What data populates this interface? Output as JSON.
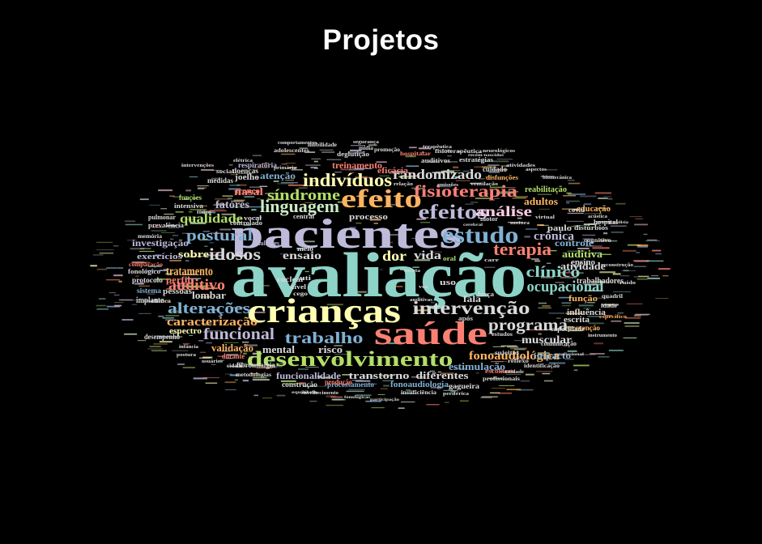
{
  "title": "Projetos",
  "palette": [
    "#8dd3c7",
    "#ffffb3",
    "#bebada",
    "#fb8072",
    "#80b1d3",
    "#fdb462",
    "#b3de69",
    "#fccde5",
    "#d9d9d9",
    "#ccebc5"
  ],
  "words": [
    {
      "text": "avaliação",
      "color": "#8dd3c7"
    },
    {
      "text": "pacientes",
      "color": "#bebada"
    },
    {
      "text": "crianças",
      "color": "#ffffb3"
    },
    {
      "text": "saúde",
      "color": "#fb8072"
    },
    {
      "text": "estudo",
      "color": "#80b1d3"
    },
    {
      "text": "desenvolvimento",
      "color": "#b3de69"
    },
    {
      "text": "efeito",
      "color": "#fdb462"
    },
    {
      "text": "intervenção",
      "color": "#d9d9d9"
    },
    {
      "text": "efeitos",
      "color": "#bebada"
    },
    {
      "text": "indivíduos",
      "color": "#ffffb3"
    },
    {
      "text": "linguagem",
      "color": "#ccebc5"
    },
    {
      "text": "fisioterapia",
      "color": "#fb8072"
    },
    {
      "text": "síndrome",
      "color": "#b3de69"
    },
    {
      "text": "terapia",
      "color": "#fb8072"
    },
    {
      "text": "postural",
      "color": "#80b1d3"
    },
    {
      "text": "programa",
      "color": "#d9d9d9"
    },
    {
      "text": "trabalho",
      "color": "#80b1d3"
    },
    {
      "text": "funcional",
      "color": "#bebada"
    },
    {
      "text": "alterações",
      "color": "#80b1d3"
    },
    {
      "text": "análise",
      "color": "#fccde5"
    },
    {
      "text": "randomizado",
      "color": "#d9d9d9"
    },
    {
      "text": "idosos",
      "color": "#d9d9d9"
    },
    {
      "text": "clínico",
      "color": "#8dd3c7"
    },
    {
      "text": "ocupacional",
      "color": "#8dd3c7"
    },
    {
      "text": "auditivo",
      "color": "#fb8072"
    },
    {
      "text": "qualidade",
      "color": "#b3de69"
    },
    {
      "text": "fonoaudiológica",
      "color": "#fdb462"
    },
    {
      "text": "caracterização",
      "color": "#fdb462"
    },
    {
      "text": "tratamento",
      "color": "#fdb462"
    },
    {
      "text": "dor",
      "color": "#ffffb3"
    },
    {
      "text": "vida",
      "color": "#d9d9d9"
    },
    {
      "text": "crônica",
      "color": "#bebada"
    },
    {
      "text": "transtorno",
      "color": "#d9d9d9"
    },
    {
      "text": "funcionalidade",
      "color": "#bebada"
    },
    {
      "text": "estimulação",
      "color": "#80b1d3"
    },
    {
      "text": "muscular",
      "color": "#d9d9d9"
    },
    {
      "text": "atividade",
      "color": "#d9d9d9"
    },
    {
      "text": "ensaio",
      "color": "#d9d9d9"
    },
    {
      "text": "fatores",
      "color": "#bebada"
    },
    {
      "text": "nasal",
      "color": "#fb8072"
    },
    {
      "text": "sobre",
      "color": "#ffffb3"
    },
    {
      "text": "auditiva",
      "color": "#b3de69"
    },
    {
      "text": "controle",
      "color": "#80b1d3"
    },
    {
      "text": "adultos",
      "color": "#fdb462"
    },
    {
      "text": "treinamento",
      "color": "#fb8072"
    },
    {
      "text": "processo",
      "color": "#d9d9d9"
    },
    {
      "text": "atenção",
      "color": "#80b1d3"
    },
    {
      "text": "investigação",
      "color": "#bebada"
    },
    {
      "text": "exercícios",
      "color": "#bebada"
    },
    {
      "text": "perfil",
      "color": "#fb8072"
    },
    {
      "text": "lombar",
      "color": "#d9d9d9"
    },
    {
      "text": "validação",
      "color": "#fdb462"
    },
    {
      "text": "mental",
      "color": "#d9d9d9"
    },
    {
      "text": "risco",
      "color": "#d9d9d9"
    },
    {
      "text": "diferentes",
      "color": "#d9d9d9"
    },
    {
      "text": "fonoaudiologia",
      "color": "#80b1d3"
    },
    {
      "text": "espectro",
      "color": "#ffffb3"
    },
    {
      "text": "influência",
      "color": "#d9d9d9"
    },
    {
      "text": "impacto",
      "color": "#80b1d3"
    },
    {
      "text": "fala",
      "color": "#d9d9d9"
    },
    {
      "text": "uso",
      "color": "#d9d9d9"
    },
    {
      "text": "reabilitação",
      "color": "#b3de69"
    },
    {
      "text": "paulo",
      "color": "#d9d9d9"
    },
    {
      "text": "educação",
      "color": "#fdb462"
    },
    {
      "text": "função",
      "color": "#fdb462"
    },
    {
      "text": "trabalhadores",
      "color": "#d9d9d9"
    },
    {
      "text": "escrita",
      "color": "#d9d9d9"
    },
    {
      "text": "prevenção",
      "color": "#fdb462"
    },
    {
      "text": "ensino",
      "color": "#d9d9d9"
    },
    {
      "text": "pessoas",
      "color": "#d9d9d9"
    },
    {
      "text": "implante",
      "color": "#d9d9d9"
    },
    {
      "text": "coclear",
      "color": "#d9d9d9"
    },
    {
      "text": "eficácia",
      "color": "#fb8072"
    },
    {
      "text": "joelho",
      "color": "#d9d9d9"
    },
    {
      "text": "tronco",
      "color": "#fb8072"
    },
    {
      "text": "doenças",
      "color": "#d9d9d9"
    },
    {
      "text": "construção",
      "color": "#d9d9d9"
    },
    {
      "text": "protocolo",
      "color": "#d9d9d9"
    },
    {
      "text": "sistema",
      "color": "#80b1d3"
    },
    {
      "text": "respiratória",
      "color": "#bebada"
    },
    {
      "text": "desempenho",
      "color": "#d9d9d9"
    },
    {
      "text": "intensiva",
      "color": "#d9d9d9"
    },
    {
      "text": "medidas",
      "color": "#d9d9d9"
    },
    {
      "text": "funções",
      "color": "#b3de69"
    },
    {
      "text": "cuidado",
      "color": "#d9d9d9"
    },
    {
      "text": "processamento",
      "color": "#80b1d3"
    },
    {
      "text": "deglutição",
      "color": "#d9d9d9"
    },
    {
      "text": "auditivos",
      "color": "#d9d9d9"
    },
    {
      "text": "durante",
      "color": "#fb8072"
    },
    {
      "text": "fibromialgia",
      "color": "#d9d9d9"
    },
    {
      "text": "comunicação",
      "color": "#d9d9d9"
    },
    {
      "text": "covid",
      "color": "#d9d9d9"
    },
    {
      "text": "pulmonar",
      "color": "#d9d9d9"
    },
    {
      "text": "hospital",
      "color": "#d9d9d9"
    },
    {
      "text": "fonológico",
      "color": "#d9d9d9"
    },
    {
      "text": "melo",
      "color": "#d9d9d9"
    },
    {
      "text": "oral",
      "color": "#b3de69"
    },
    {
      "text": "força",
      "color": "#d9d9d9"
    },
    {
      "text": "capacidade",
      "color": "#d9d9d9"
    },
    {
      "text": "prevalência",
      "color": "#d9d9d9"
    },
    {
      "text": "distúrbios",
      "color": "#d9d9d9"
    },
    {
      "text": "gagueira",
      "color": "#d9d9d9"
    },
    {
      "text": "produção",
      "color": "#fb8072"
    },
    {
      "text": "após",
      "color": "#d9d9d9"
    },
    {
      "text": "nível",
      "color": "#d9d9d9"
    },
    {
      "text": "vocal",
      "color": "#d9d9d9"
    },
    {
      "text": "mulheres",
      "color": "#bebada"
    },
    {
      "text": "controlado",
      "color": "#d9d9d9"
    },
    {
      "text": "motor",
      "color": "#d9d9d9"
    },
    {
      "text": "central",
      "color": "#d9d9d9"
    },
    {
      "text": "escolares",
      "color": "#fb8072"
    },
    {
      "text": "disfunções",
      "color": "#fdb462"
    },
    {
      "text": "estratégias",
      "color": "#d9d9d9"
    },
    {
      "text": "cognitivo",
      "color": "#d9d9d9"
    },
    {
      "text": "idade",
      "color": "#d9d9d9"
    },
    {
      "text": "cego",
      "color": "#d9d9d9"
    },
    {
      "text": "uti",
      "color": "#d9d9d9"
    },
    {
      "text": "social",
      "color": "#d9d9d9"
    },
    {
      "text": "memória",
      "color": "#d9d9d9"
    },
    {
      "text": "comparação",
      "color": "#fb8072"
    },
    {
      "text": "clínica",
      "color": "#d9d9d9"
    },
    {
      "text": "sujeitos",
      "color": "#d9d9d9"
    },
    {
      "text": "reflexo",
      "color": "#d9d9d9"
    },
    {
      "text": "estudos",
      "color": "#d9d9d9"
    },
    {
      "text": "fisioterapêutica",
      "color": "#d9d9d9"
    },
    {
      "text": "promoção",
      "color": "#d9d9d9"
    },
    {
      "text": "hospitalar",
      "color": "#fb8072"
    },
    {
      "text": "adolescentes",
      "color": "#d9d9d9"
    },
    {
      "text": "mobilidade",
      "color": "#d9d9d9"
    },
    {
      "text": "mídia",
      "color": "#d9d9d9"
    },
    {
      "text": "quadril",
      "color": "#d9d9d9"
    },
    {
      "text": "ruído",
      "color": "#d9d9d9"
    },
    {
      "text": "identificação",
      "color": "#d9d9d9"
    },
    {
      "text": "profissionais",
      "color": "#d9d9d9"
    },
    {
      "text": "insuficiência",
      "color": "#d9d9d9"
    },
    {
      "text": "metodologias",
      "color": "#d9d9d9"
    },
    {
      "text": "comportamentos",
      "color": "#d9d9d9"
    },
    {
      "text": "unidade",
      "color": "#d9d9d9"
    },
    {
      "text": "atividades",
      "color": "#d9d9d9"
    },
    {
      "text": "instrumento",
      "color": "#d9d9d9"
    },
    {
      "text": "cidade",
      "color": "#d9d9d9"
    },
    {
      "text": "terapêutica",
      "color": "#d9d9d9"
    },
    {
      "text": "segurança",
      "color": "#d9d9d9"
    },
    {
      "text": "relação",
      "color": "#d9d9d9"
    },
    {
      "text": "emissões",
      "color": "#d9d9d9"
    },
    {
      "text": "voz",
      "color": "#d9d9d9"
    },
    {
      "text": "escuta",
      "color": "#d9d9d9"
    },
    {
      "text": "ventilação",
      "color": "#d9d9d9"
    },
    {
      "text": "neurológicos",
      "color": "#d9d9d9"
    },
    {
      "text": "elétrica",
      "color": "#d9d9d9"
    },
    {
      "text": "postura",
      "color": "#d9d9d9"
    },
    {
      "text": "infância",
      "color": "#d9d9d9"
    },
    {
      "text": "usuários",
      "color": "#d9d9d9"
    },
    {
      "text": "equilíbrio",
      "color": "#d9d9d9"
    },
    {
      "text": "envelhecimento",
      "color": "#d9d9d9"
    },
    {
      "text": "periférica",
      "color": "#d9d9d9"
    },
    {
      "text": "auditivas",
      "color": "#d9d9d9"
    },
    {
      "text": "específico",
      "color": "#fdb462"
    },
    {
      "text": "fonológicas",
      "color": "#d9d9d9"
    },
    {
      "text": "participação",
      "color": "#d9d9d9"
    },
    {
      "text": "recém-nascidos",
      "color": "#d9d9d9"
    },
    {
      "text": "intervenções",
      "color": "#d9d9d9"
    },
    {
      "text": "físico",
      "color": "#d9d9d9"
    },
    {
      "text": "virtual",
      "color": "#d9d9d9"
    },
    {
      "text": "acústica",
      "color": "#d9d9d9"
    },
    {
      "text": "paralisia",
      "color": "#d9d9d9"
    },
    {
      "text": "cerebral",
      "color": "#d9d9d9"
    },
    {
      "text": "motora",
      "color": "#d9d9d9"
    },
    {
      "text": "aspectos",
      "color": "#d9d9d9"
    },
    {
      "text": "biomecânica",
      "color": "#d9d9d9"
    },
    {
      "text": "reconstrução",
      "color": "#d9d9d9"
    },
    {
      "text": "care",
      "color": "#d9d9d9"
    },
    {
      "text": "primária",
      "color": "#d9d9d9"
    },
    {
      "text": "profissional",
      "color": "#d9d9d9"
    }
  ]
}
